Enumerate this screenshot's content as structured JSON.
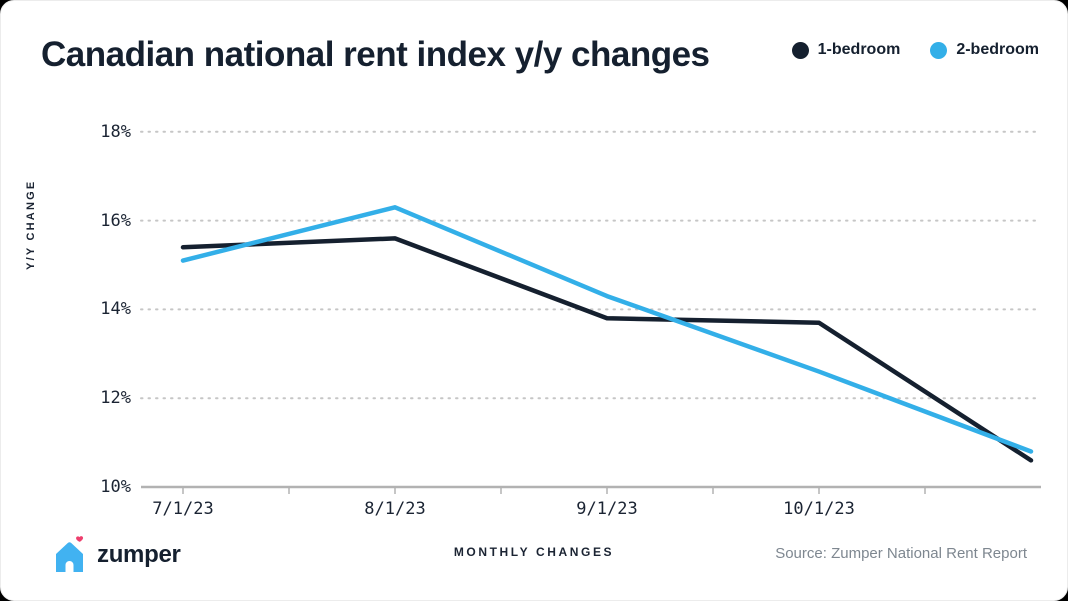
{
  "header": {
    "title": "Canadian national rent index y/y changes"
  },
  "footer": {
    "logo_text": "zumper",
    "source": "Source: Zumper National Rent Report"
  },
  "colors": {
    "navy": "#15202f",
    "accent_blue": "#33afe8",
    "axis_gray": "#b2b2b2",
    "grid_gray": "#c6c6c6",
    "source_gray": "#7e8790",
    "logo_blue": "#41b2f1",
    "logo_heart_pink": "#ee3e6d"
  },
  "chart_data": {
    "type": "line",
    "title": "Canadian national rent index y/y changes",
    "xlabel": "MONTHLY CHANGES",
    "ylabel": "Y/Y CHANGE",
    "ylim": [
      10,
      18
    ],
    "grid": "horizontal-dotted",
    "legend_position": "top-right",
    "x_tick_labels": [
      "7/1/23",
      "8/1/23",
      "9/1/23",
      "10/1/23"
    ],
    "y_tick_labels": [
      "10%",
      "12%",
      "14%",
      "16%",
      "18%"
    ],
    "y_tick_values": [
      10,
      12,
      14,
      16,
      18
    ],
    "points_per_series": 5,
    "last_point_unlabeled": true,
    "series": [
      {
        "name": "1-bedroom",
        "color": "#15202f",
        "values": [
          15.4,
          15.6,
          13.8,
          13.7,
          10.6
        ]
      },
      {
        "name": "2-bedroom",
        "color": "#33afe8",
        "values": [
          15.1,
          16.3,
          14.3,
          12.6,
          10.8
        ]
      }
    ]
  }
}
